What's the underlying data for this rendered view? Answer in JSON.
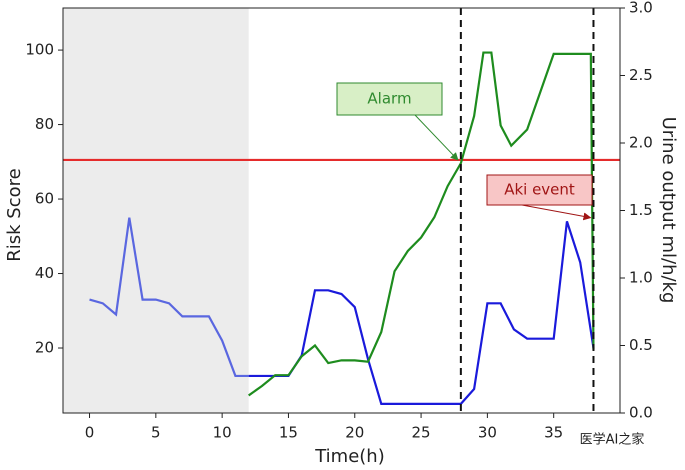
{
  "chart_data": {
    "type": "line",
    "xlabel": "Time(h)",
    "ylabel": "Risk Score",
    "y2label": "Urine output ml/h/kg",
    "xlim": [
      -2,
      40
    ],
    "ylim": [
      2.55,
      111.3
    ],
    "y2lim": [
      0,
      3
    ],
    "xticks": [
      0,
      5,
      10,
      15,
      20,
      25,
      30,
      35
    ],
    "yticks": [
      20,
      40,
      60,
      80,
      100
    ],
    "y2ticks": [
      {
        "value": 0,
        "label": "0.0"
      },
      {
        "value": 0.5,
        "label": "0.5"
      },
      {
        "value": 1,
        "label": "1.0"
      },
      {
        "value": 1.5,
        "label": "1.5"
      },
      {
        "value": 2,
        "label": "2.0"
      },
      {
        "value": 2.5,
        "label": "2.5"
      },
      {
        "value": 3,
        "label": "3.0"
      }
    ],
    "shade_x": [
      -2,
      12
    ],
    "shade_color": "#ececec",
    "hline": {
      "y": 70.5,
      "color": "#e52b2b"
    },
    "vlines": [
      28,
      38
    ],
    "series": [
      {
        "color": "#5a67e0",
        "axis": "y",
        "x": [
          0,
          1,
          2,
          3,
          4,
          5,
          6,
          7,
          8,
          9,
          10,
          11,
          12
        ],
        "values": [
          33,
          32,
          29,
          55,
          33,
          33,
          32,
          28.5,
          28.5,
          28.5,
          22,
          12.5,
          12.5
        ]
      },
      {
        "color": "#1a1adb",
        "axis": "y",
        "x": [
          12,
          15,
          16,
          17,
          18,
          19,
          20,
          21,
          22,
          23,
          28,
          29,
          30,
          31,
          32,
          33,
          35,
          36,
          37,
          38
        ],
        "values": [
          12.5,
          12.5,
          18,
          35.5,
          35.5,
          34.5,
          31,
          17,
          5,
          5,
          5,
          9,
          32,
          32,
          25,
          22.5,
          22.5,
          54,
          43,
          20
        ]
      },
      {
        "color": "#1e8c1e",
        "axis": "y2",
        "x": [
          12,
          13,
          14,
          15,
          16,
          17,
          18,
          19,
          20,
          21,
          22,
          23,
          24,
          25,
          26,
          27,
          28,
          29,
          29.7,
          30.3,
          31,
          31.8,
          33,
          35,
          37.8,
          38
        ],
        "values": [
          0.13,
          0.2,
          0.28,
          0.28,
          0.42,
          0.5,
          0.37,
          0.39,
          0.39,
          0.38,
          0.6,
          1.05,
          1.2,
          1.3,
          1.45,
          1.68,
          1.85,
          2.2,
          2.67,
          2.67,
          2.13,
          1.98,
          2.1,
          2.66,
          2.66,
          0.47
        ]
      }
    ],
    "annotations": [
      {
        "text": "Alarm",
        "x": 28,
        "y": 70.5,
        "color": "#2f8a2f",
        "fill": "#d8efc6"
      },
      {
        "text": "Aki event",
        "x": 38,
        "y": 55,
        "color": "#a01515",
        "fill": "#f8c6c6"
      }
    ],
    "watermark": "医学AI之家"
  }
}
